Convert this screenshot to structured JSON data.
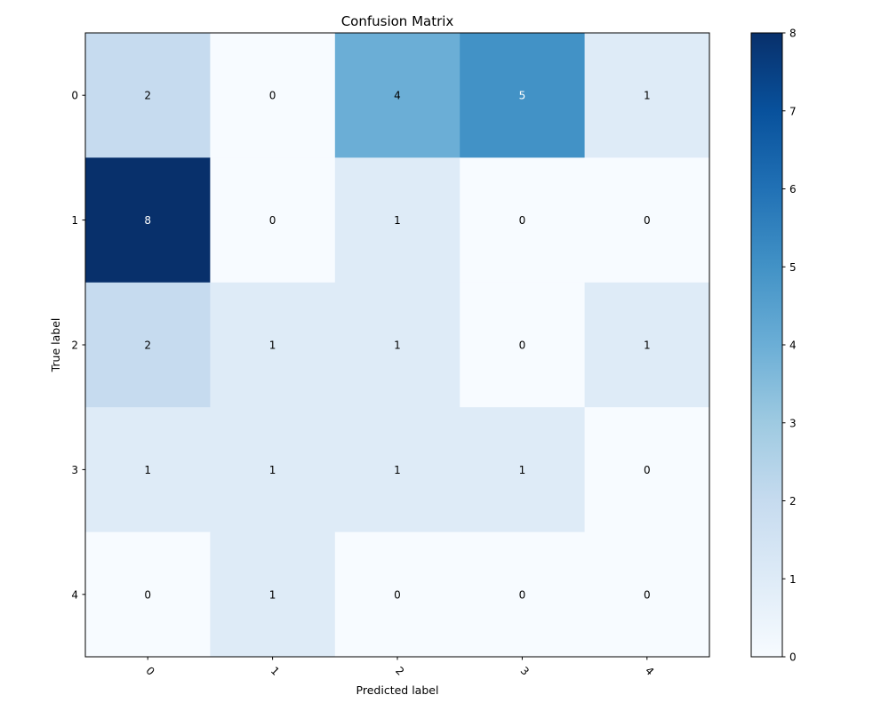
{
  "chart_data": {
    "type": "heatmap",
    "title": "Confusion Matrix",
    "xlabel": "Predicted label",
    "ylabel": "True label",
    "x_categories": [
      "0",
      "1",
      "2",
      "3",
      "4"
    ],
    "y_categories": [
      "0",
      "1",
      "2",
      "3",
      "4"
    ],
    "values": [
      [
        2,
        0,
        4,
        5,
        1
      ],
      [
        8,
        0,
        1,
        0,
        0
      ],
      [
        2,
        1,
        1,
        0,
        1
      ],
      [
        1,
        1,
        1,
        1,
        0
      ],
      [
        0,
        1,
        0,
        0,
        0
      ]
    ],
    "colormap": "Blues",
    "color_stops": [
      "#f7fbff",
      "#deebf7",
      "#c6dbef",
      "#9ecae1",
      "#6baed6",
      "#4292c6",
      "#2171b5",
      "#08519c",
      "#08306b"
    ],
    "colorbar": {
      "range": [
        0,
        8
      ],
      "ticks": [
        "0",
        "1",
        "2",
        "3",
        "4",
        "5",
        "6",
        "7",
        "8"
      ]
    },
    "text_color_dark": "#000000",
    "text_color_light": "#ffffff",
    "xtick_rotation_deg": 45,
    "grid": false
  }
}
